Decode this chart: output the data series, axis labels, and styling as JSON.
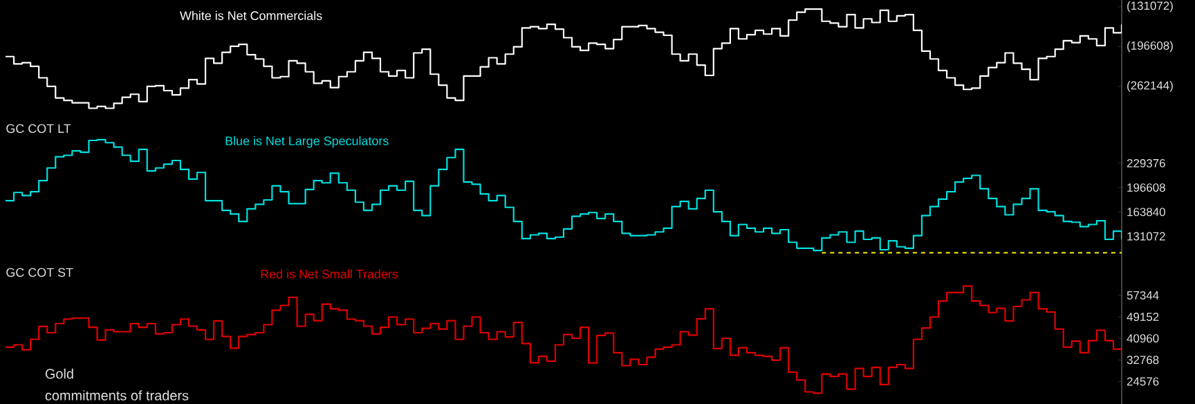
{
  "chart_data": [
    {
      "type": "step",
      "ylim": [
        -302000,
        -120000
      ],
      "yticks": [
        {
          "value": -131072,
          "label": "(131072)"
        },
        {
          "value": -196608,
          "label": "(196608)"
        },
        {
          "value": -262144,
          "label": "(262144)"
        }
      ],
      "tick_labels": "y",
      "categories": [
        null,
        null,
        null,
        null,
        null,
        null,
        null,
        null,
        null,
        null,
        null,
        null,
        null,
        null,
        null,
        null,
        null,
        null,
        null,
        null,
        null,
        null,
        null,
        null,
        null,
        null,
        null,
        null,
        null,
        null,
        null,
        null,
        null,
        null,
        null,
        null,
        null,
        null,
        null,
        null,
        null,
        null,
        null,
        null,
        null,
        null,
        null,
        null,
        null,
        null,
        null,
        null,
        null,
        null,
        null,
        null,
        null,
        null,
        null,
        null,
        null,
        null,
        null,
        null,
        null,
        null,
        null,
        null,
        null,
        null,
        null,
        null,
        null,
        null,
        null,
        null,
        null,
        null,
        null,
        null,
        null,
        null,
        null,
        null,
        null,
        null,
        null,
        null,
        null,
        null,
        null,
        null,
        null,
        null,
        null,
        null,
        null,
        null,
        null,
        null,
        null,
        null,
        null,
        null,
        null,
        null,
        null,
        null,
        null,
        null,
        null,
        null,
        null,
        null,
        null,
        null,
        null,
        null,
        null,
        null,
        null,
        null,
        null,
        null,
        null,
        null,
        null,
        null,
        null,
        null,
        null,
        null,
        null,
        null,
        null
      ],
      "series": [
        {
          "name": "White is Net Commercials",
          "color": "#ffffff",
          "values": [
            -213000,
            -225000,
            -223000,
            -229000,
            -248000,
            -262000,
            -281000,
            -285000,
            -289000,
            -289000,
            -298000,
            -295000,
            -298000,
            -290000,
            -280000,
            -275000,
            -287000,
            -262000,
            -261000,
            -269000,
            -276000,
            -265000,
            -251000,
            -258000,
            -216000,
            -224000,
            -206000,
            -196000,
            -193000,
            -210000,
            -217000,
            -229000,
            -248000,
            -246000,
            -220000,
            -224000,
            -238000,
            -257000,
            -253000,
            -264000,
            -246000,
            -238000,
            -220000,
            -206000,
            -216000,
            -238000,
            -245000,
            -236000,
            -248000,
            -207000,
            -201000,
            -242000,
            -260000,
            -281000,
            -285000,
            -245000,
            -245000,
            -230000,
            -215000,
            -225000,
            -209000,
            -197000,
            -166000,
            -164000,
            -167000,
            -160000,
            -168000,
            -182000,
            -197000,
            -203000,
            -191000,
            -193000,
            -200000,
            -185000,
            -164000,
            -164000,
            -162000,
            -167000,
            -173000,
            -178000,
            -209000,
            -220000,
            -209000,
            -227000,
            -244000,
            -200000,
            -191000,
            -167000,
            -184000,
            -177000,
            -170000,
            -176000,
            -167000,
            -179000,
            -153000,
            -140000,
            -135000,
            -135000,
            -155000,
            -158000,
            -164000,
            -144000,
            -166000,
            -151000,
            -157000,
            -137000,
            -155000,
            -146000,
            -144000,
            -170000,
            -204000,
            -217000,
            -236000,
            -248000,
            -260000,
            -267000,
            -265000,
            -245000,
            -231000,
            -223000,
            -207000,
            -224000,
            -234000,
            -251000,
            -216000,
            -213000,
            -201000,
            -187000,
            -190000,
            -179000,
            -184000,
            -195000,
            -166000,
            -174000,
            -160000
          ]
        }
      ]
    },
    {
      "type": "step",
      "title": "GC COT LT",
      "ylim": [
        100000,
        300000
      ],
      "yticks": [
        131072,
        163840,
        196608,
        229376
      ],
      "tick_labels": "y",
      "categories": [
        null,
        null,
        null,
        null,
        null,
        null,
        null,
        null,
        null,
        null,
        null,
        null,
        null,
        null,
        null,
        null,
        null,
        null,
        null,
        null,
        null,
        null,
        null,
        null,
        null,
        null,
        null,
        null,
        null,
        null,
        null,
        null,
        null,
        null,
        null,
        null,
        null,
        null,
        null,
        null,
        null,
        null,
        null,
        null,
        null,
        null,
        null,
        null,
        null,
        null,
        null,
        null,
        null,
        null,
        null,
        null,
        null,
        null,
        null,
        null,
        null,
        null,
        null,
        null,
        null,
        null,
        null,
        null,
        null,
        null,
        null,
        null,
        null,
        null,
        null,
        null,
        null,
        null,
        null,
        null,
        null,
        null,
        null,
        null,
        null,
        null,
        null,
        null,
        null,
        null,
        null,
        null,
        null,
        null,
        null,
        null,
        null,
        null,
        null,
        null,
        null,
        null,
        null,
        null,
        null,
        null,
        null,
        null,
        null,
        null,
        null,
        null,
        null,
        null,
        null,
        null,
        null,
        null,
        null,
        null,
        null,
        null,
        null,
        null,
        null,
        null,
        null,
        null,
        null,
        null,
        null,
        null,
        null,
        null,
        null
      ],
      "series": [
        {
          "name": "Blue is Net Large Speculators",
          "color": "#00e0e0",
          "values": [
            179000,
            190000,
            186000,
            191000,
            206000,
            223000,
            238000,
            240000,
            246000,
            244000,
            260000,
            261000,
            257000,
            251000,
            240000,
            232000,
            248000,
            219000,
            223000,
            228000,
            233000,
            221000,
            208000,
            217000,
            179000,
            179000,
            166000,
            161000,
            151000,
            168000,
            174000,
            180000,
            199000,
            191000,
            175000,
            175000,
            194000,
            206000,
            203000,
            216000,
            203000,
            193000,
            177000,
            166000,
            174000,
            193000,
            199000,
            193000,
            205000,
            166000,
            159000,
            199000,
            221000,
            237000,
            248000,
            204000,
            201000,
            188000,
            179000,
            186000,
            170000,
            151000,
            128000,
            133000,
            135000,
            128000,
            130000,
            141000,
            158000,
            161000,
            163000,
            155000,
            161000,
            151000,
            135000,
            132000,
            132000,
            133000,
            137000,
            142000,
            171000,
            178000,
            168000,
            182000,
            193000,
            164000,
            151000,
            132000,
            147000,
            142000,
            137000,
            142000,
            135000,
            140000,
            123000,
            115000,
            115000,
            112000,
            129000,
            133000,
            137000,
            123000,
            138000,
            127000,
            129000,
            113000,
            125000,
            117000,
            115000,
            132000,
            159000,
            171000,
            181000,
            191000,
            204000,
            209000,
            213000,
            195000,
            182000,
            171000,
            160000,
            174000,
            182000,
            195000,
            166000,
            164000,
            159000,
            151000,
            150000,
            144000,
            147000,
            152000,
            127000,
            138000,
            127000
          ]
        },
        {
          "type": "line",
          "color": "#e0e000",
          "line_style": "dashed",
          "values": [
            null,
            null,
            null,
            null,
            null,
            null,
            null,
            null,
            null,
            null,
            null,
            null,
            null,
            null,
            null,
            null,
            null,
            null,
            null,
            null,
            null,
            null,
            null,
            null,
            null,
            null,
            null,
            null,
            null,
            null,
            null,
            null,
            null,
            null,
            null,
            null,
            null,
            null,
            null,
            null,
            null,
            null,
            null,
            null,
            null,
            null,
            null,
            null,
            null,
            null,
            null,
            null,
            null,
            null,
            null,
            null,
            null,
            null,
            null,
            null,
            null,
            null,
            null,
            null,
            null,
            null,
            null,
            null,
            null,
            null,
            null,
            null,
            null,
            null,
            null,
            null,
            null,
            null,
            null,
            null,
            null,
            null,
            null,
            null,
            null,
            null,
            null,
            null,
            null,
            null,
            null,
            null,
            null,
            null,
            null,
            null,
            null,
            null,
            109000,
            109000,
            109000,
            109000,
            109000,
            109000,
            109000,
            109000,
            109000,
            109000,
            109000,
            109000,
            109000,
            109000,
            109000,
            109000,
            109000,
            109000,
            109000,
            109000,
            109000,
            109000,
            109000,
            109000,
            109000,
            109000,
            109000,
            109000,
            109000,
            109000,
            109000,
            109000,
            109000,
            109000,
            109000,
            109000,
            109000
          ]
        }
      ]
    },
    {
      "type": "step",
      "title": "GC COT ST",
      "ylim": [
        16000,
        71000
      ],
      "yticks": [
        24576,
        32768,
        40960,
        49152,
        57344
      ],
      "tick_labels": "y",
      "categories": [
        null,
        null,
        null,
        null,
        null,
        null,
        null,
        null,
        null,
        null,
        null,
        null,
        null,
        null,
        null,
        null,
        null,
        null,
        null,
        null,
        null,
        null,
        null,
        null,
        null,
        null,
        null,
        null,
        null,
        null,
        null,
        null,
        null,
        null,
        null,
        null,
        null,
        null,
        null,
        null,
        null,
        null,
        null,
        null,
        null,
        null,
        null,
        null,
        null,
        null,
        null,
        null,
        null,
        null,
        null,
        null,
        null,
        null,
        null,
        null,
        null,
        null,
        null,
        null,
        null,
        null,
        null,
        null,
        null,
        null,
        null,
        null,
        null,
        null,
        null,
        null,
        null,
        null,
        null,
        null,
        null,
        null,
        null,
        null,
        null,
        null,
        null,
        null,
        null,
        null,
        null,
        null,
        null,
        null,
        null,
        null,
        null,
        null,
        null,
        null,
        null,
        null,
        null,
        null,
        null,
        null,
        null,
        null,
        null,
        null,
        null,
        null,
        null,
        null,
        null,
        null,
        null,
        null,
        null,
        null,
        null,
        null,
        null,
        null,
        null,
        null,
        null,
        null,
        null,
        null,
        null,
        null,
        null,
        null,
        null
      ],
      "annotations": [
        "Gold",
        "commitments of traders"
      ],
      "series": [
        {
          "name": "Red is Net Small Traders",
          "color": "#e00000",
          "values": [
            37600,
            38500,
            36600,
            40600,
            45500,
            43100,
            46600,
            48300,
            48700,
            48700,
            45200,
            40300,
            44200,
            43500,
            43500,
            46600,
            45200,
            46600,
            42700,
            43100,
            46200,
            48300,
            45600,
            44200,
            40600,
            47600,
            41700,
            37200,
            41700,
            42400,
            43100,
            46200,
            51700,
            53500,
            56600,
            45600,
            50100,
            47700,
            54000,
            52200,
            51700,
            48300,
            47700,
            45600,
            42700,
            45200,
            49100,
            46200,
            48300,
            43100,
            44800,
            46600,
            44500,
            47700,
            40600,
            45600,
            49100,
            43100,
            40600,
            43500,
            41500,
            47000,
            39000,
            31700,
            34100,
            32300,
            38500,
            42400,
            41000,
            45200,
            31600,
            42100,
            43000,
            35500,
            30600,
            33000,
            31000,
            33800,
            36900,
            37600,
            38500,
            43500,
            42200,
            48400,
            52200,
            37100,
            41000,
            34500,
            37400,
            35500,
            34500,
            34100,
            32700,
            37400,
            28100,
            25100,
            20600,
            20100,
            27400,
            26500,
            27400,
            21600,
            29500,
            26500,
            29900,
            23400,
            29900,
            31000,
            29500,
            40600,
            44900,
            49100,
            55200,
            58400,
            58400,
            60900,
            55200,
            53500,
            50800,
            52400,
            47600,
            53100,
            55600,
            58400,
            52200,
            51000,
            44500,
            37600,
            39900,
            35500,
            40100,
            44100,
            40100,
            36900,
            34100
          ]
        }
      ]
    }
  ]
}
